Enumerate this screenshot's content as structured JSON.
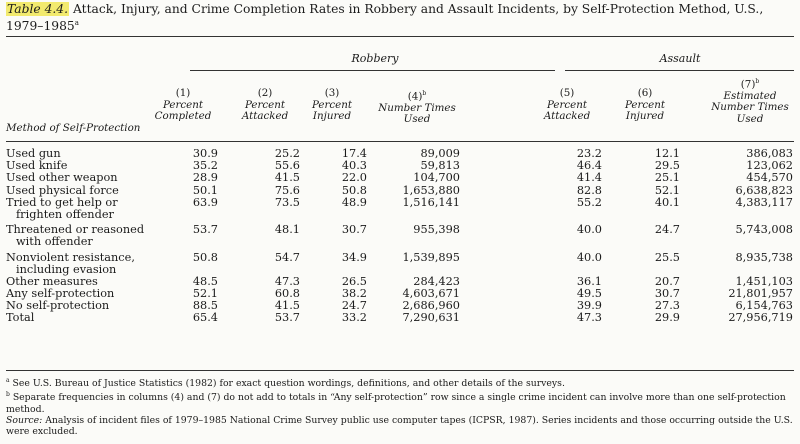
{
  "title": {
    "number": "Table 4.4.",
    "text": "Attack, Injury, and Crime Completion Rates in Robbery and Assault Incidents, by Self-Protection Method, U.S., 1979–1985",
    "note_mark": "a"
  },
  "groups": {
    "robbery": "Robbery",
    "assault": "Assault"
  },
  "row_header": "Method of Self-Protection",
  "columns": [
    {
      "num": "(1)",
      "label": "Percent Completed",
      "mark": ""
    },
    {
      "num": "(2)",
      "label": "Percent Attacked",
      "mark": ""
    },
    {
      "num": "(3)",
      "label": "Percent Injured",
      "mark": ""
    },
    {
      "num": "(4)",
      "label": "Number Times Used",
      "mark": "b"
    },
    {
      "num": "(5)",
      "label": "Percent Attacked",
      "mark": ""
    },
    {
      "num": "(6)",
      "label": "Percent Injured",
      "mark": ""
    },
    {
      "num": "(7)",
      "label": "Estimated Number Times Used",
      "mark": "b"
    }
  ],
  "rows": [
    {
      "label": [
        "Used gun"
      ],
      "values": [
        "30.9",
        "25.2",
        "17.4",
        "89,009",
        "23.2",
        "12.1",
        "386,083"
      ]
    },
    {
      "label": [
        "Used knife"
      ],
      "values": [
        "35.2",
        "55.6",
        "40.3",
        "59,813",
        "46.4",
        "29.5",
        "123,062"
      ]
    },
    {
      "label": [
        "Used other weapon"
      ],
      "values": [
        "28.9",
        "41.5",
        "22.0",
        "104,700",
        "41.4",
        "25.1",
        "454,570"
      ]
    },
    {
      "label": [
        "Used physical force"
      ],
      "values": [
        "50.1",
        "75.6",
        "50.8",
        "1,653,880",
        "82.8",
        "52.1",
        "6,638,823"
      ]
    },
    {
      "label": [
        "Tried to get help or",
        "frighten offender"
      ],
      "values": [
        "63.9",
        "73.5",
        "48.9",
        "1,516,141",
        "55.2",
        "40.1",
        "4,383,117"
      ]
    },
    {
      "label": [
        "Threatened or reasoned",
        "with offender"
      ],
      "values": [
        "53.7",
        "48.1",
        "30.7",
        "955,398",
        "40.0",
        "24.7",
        "5,743,008"
      ]
    },
    {
      "label": [
        "Nonviolent resistance,",
        "including evasion"
      ],
      "values": [
        "50.8",
        "54.7",
        "34.9",
        "1,539,895",
        "40.0",
        "25.5",
        "8,935,738"
      ]
    },
    {
      "label": [
        "Other measures"
      ],
      "values": [
        "48.5",
        "47.3",
        "26.5",
        "284,423",
        "36.1",
        "20.7",
        "1,451,103"
      ]
    },
    {
      "label": [
        "Any self-protection"
      ],
      "values": [
        "52.1",
        "60.8",
        "38.2",
        "4,603,671",
        "49.5",
        "30.7",
        "21,801,957"
      ]
    },
    {
      "label": [
        "No self-protection"
      ],
      "values": [
        "88.5",
        "41.5",
        "24.7",
        "2,686,960",
        "39.9",
        "27.3",
        "6,154,763"
      ]
    },
    {
      "label": [
        "Total"
      ],
      "values": [
        "65.4",
        "53.7",
        "33.2",
        "7,290,631",
        "47.3",
        "29.9",
        "27,956,719"
      ]
    }
  ],
  "notes": {
    "a_mark": "a",
    "a": "See U.S. Bureau of Justice Statistics (1982) for exact question wordings, definitions, and other details of the surveys.",
    "b_mark": "b",
    "b": "Separate frequencies in columns (4) and (7) do not add to totals in “Any self-protection” row since a single crime incident can involve more than one self-protection method.",
    "source_label": "Source:",
    "source": "Analysis of incident files of 1979–1985 National Crime Survey public use computer tapes (ICPSR, 1987). Series incidents and those occurring outside the U.S. were excluded."
  }
}
